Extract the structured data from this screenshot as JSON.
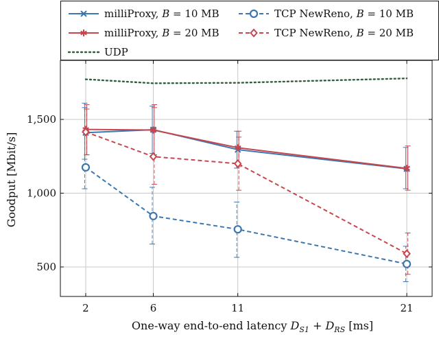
{
  "chart_data": {
    "type": "line",
    "title": "",
    "xlabel": "One-way end-to-end latency D_S1 + D_RS [ms]",
    "xlabel_parts": {
      "prefix": "One-way end-to-end latency ",
      "var1": "D",
      "sub1": "S1",
      "plus": " + ",
      "var2": "D",
      "sub2": "RS",
      "suffix": " [ms]"
    },
    "ylabel": "Goodput [Mbit/s]",
    "x": [
      2,
      6,
      11,
      21
    ],
    "xticks": [
      2,
      6,
      11,
      21
    ],
    "xtick_labels": [
      "2",
      "6",
      "11",
      "21"
    ],
    "xlim": [
      0.5,
      22.5
    ],
    "ylim": [
      300,
      1900
    ],
    "yticks": [
      500,
      1000,
      1500
    ],
    "ytick_labels": [
      "500",
      "1,000",
      "1,500"
    ],
    "grid": true,
    "legend_position": "top",
    "series": [
      {
        "name": "milliProxy, B = 10 MB",
        "name_parts": [
          "milliProxy, ",
          "B",
          " = 10 MB"
        ],
        "color": "#3b76af",
        "style": "solid",
        "marker": "x",
        "values": [
          1410,
          1430,
          1295,
          1165
        ],
        "err_low": [
          1230,
          1270,
          1170,
          1030
        ],
        "err_high": [
          1610,
          1590,
          1420,
          1310
        ]
      },
      {
        "name": "milliProxy, B = 20 MB",
        "name_parts": [
          "milliProxy, ",
          "B",
          " = 20 MB"
        ],
        "color": "#c8454d",
        "style": "solid",
        "marker": "star",
        "values": [
          1432,
          1428,
          1308,
          1168
        ],
        "err_low": [
          1260,
          1260,
          1180,
          1020
        ],
        "err_high": [
          1600,
          1600,
          1420,
          1320
        ]
      },
      {
        "name": "TCP NewReno, B = 10 MB",
        "name_parts": [
          "TCP NewReno, ",
          "B",
          " = 10 MB"
        ],
        "color": "#3b76af",
        "style": "dashed",
        "marker": "circle",
        "values": [
          1175,
          845,
          755,
          520
        ],
        "err_low": [
          1030,
          655,
          565,
          400
        ],
        "err_high": [
          1580,
          1040,
          940,
          640
        ]
      },
      {
        "name": "TCP NewReno, B = 20 MB",
        "name_parts": [
          "TCP NewReno, ",
          "B",
          " = 20 MB"
        ],
        "color": "#c8454d",
        "style": "dashed",
        "marker": "diamond",
        "values": [
          1415,
          1248,
          1200,
          590
        ],
        "err_low": [
          1260,
          1060,
          1020,
          450
        ],
        "err_high": [
          1570,
          1580,
          1380,
          730
        ]
      },
      {
        "name": "UDP",
        "name_parts": [
          "UDP",
          "",
          ""
        ],
        "color": "#2e5e3e",
        "style": "dotted",
        "marker": "none",
        "values": [
          1772,
          1745,
          1748,
          1778
        ],
        "err_low": [],
        "err_high": []
      }
    ]
  }
}
